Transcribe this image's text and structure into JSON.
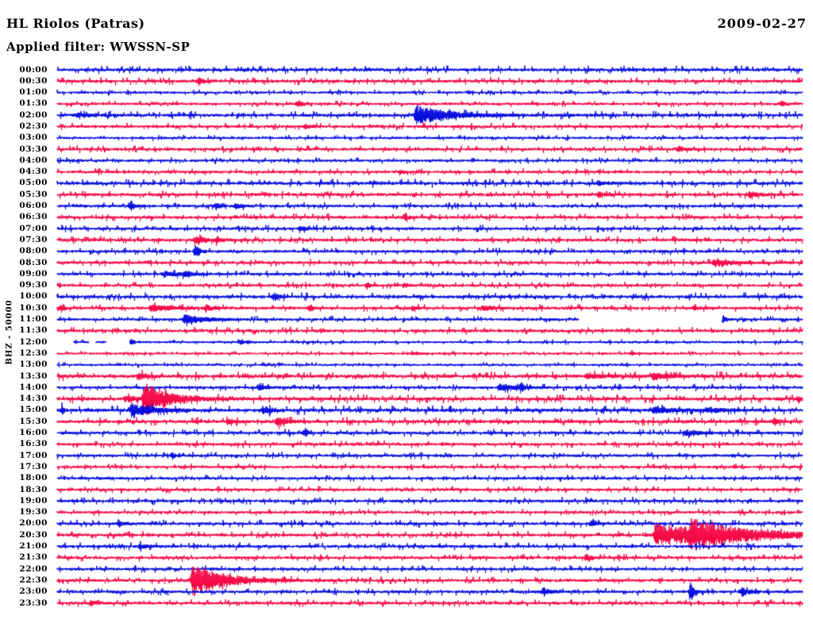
{
  "header": {
    "station_title": "HL Riolos (Patras)",
    "date": "2009-02-27",
    "filter_label": "Applied filter: WWSSN-SP"
  },
  "chart_data": {
    "type": "line",
    "subtype": "seismogram-helicorder",
    "title": "HL Riolos (Patras)",
    "date": "2009-02-27",
    "filter": "WWSSN-SP",
    "channel_scale": "BHZ - 50000",
    "row_span_minutes": 30,
    "grid": false,
    "legend": "none",
    "trace_colors": {
      "blue": "#0008dd",
      "red": "#f50342"
    },
    "rows_note": "48 half-hour traces; events given as fraction of row width (0-1), amplitude in px, exponential decay length as fraction; gaps are missing-data segments",
    "rows": [
      {
        "time": "00:00",
        "color": "blue",
        "noise": 1.7,
        "events": []
      },
      {
        "time": "00:30",
        "color": "red",
        "noise": 1.6,
        "events": [
          {
            "f": 0.19,
            "amp": 5,
            "decay": 0.006
          }
        ]
      },
      {
        "time": "01:00",
        "color": "blue",
        "noise": 1.2,
        "events": []
      },
      {
        "time": "01:30",
        "color": "red",
        "noise": 1.3,
        "events": [
          {
            "f": 0.323,
            "amp": 4,
            "decay": 0.005
          },
          {
            "f": 0.972,
            "amp": 4,
            "decay": 0.004
          }
        ]
      },
      {
        "time": "02:00",
        "color": "blue",
        "noise": 1.7,
        "events": [
          {
            "f": 0.028,
            "amp": 2.5,
            "decay": 0.02
          },
          {
            "f": 0.482,
            "amp": 12,
            "decay": 0.045
          }
        ]
      },
      {
        "time": "02:30",
        "color": "red",
        "noise": 1.5,
        "events": [
          {
            "f": 0.333,
            "amp": 2.5,
            "decay": 0.008
          }
        ]
      },
      {
        "time": "03:00",
        "color": "blue",
        "noise": 1.2,
        "events": []
      },
      {
        "time": "03:30",
        "color": "red",
        "noise": 1.5,
        "events": [
          {
            "f": 0.834,
            "amp": 3,
            "decay": 0.008
          }
        ]
      },
      {
        "time": "04:00",
        "color": "blue",
        "noise": 1.3,
        "events": []
      },
      {
        "time": "04:30",
        "color": "red",
        "noise": 1.4,
        "events": [
          {
            "f": 0.46,
            "amp": 2.5,
            "decay": 0.006
          }
        ]
      },
      {
        "time": "05:00",
        "color": "blue",
        "noise": 1.8,
        "events": [
          {
            "f": 0.727,
            "amp": 2.5,
            "decay": 0.008
          }
        ]
      },
      {
        "time": "05:30",
        "color": "red",
        "noise": 1.7,
        "events": [
          {
            "f": 0.727,
            "amp": 4,
            "decay": 0.006
          },
          {
            "f": 0.929,
            "amp": 4,
            "decay": 0.012
          }
        ]
      },
      {
        "time": "06:00",
        "color": "blue",
        "noise": 1.5,
        "events": [
          {
            "f": 0.099,
            "amp": 6,
            "decay": 0.005
          },
          {
            "f": 0.213,
            "amp": 3,
            "decay": 0.008
          },
          {
            "f": 0.24,
            "amp": 3,
            "decay": 0.008
          }
        ]
      },
      {
        "time": "06:30",
        "color": "red",
        "noise": 1.5,
        "events": [
          {
            "f": 0.466,
            "amp": 4,
            "decay": 0.006
          }
        ]
      },
      {
        "time": "07:00",
        "color": "blue",
        "noise": 1.5,
        "events": [
          {
            "f": 0.326,
            "amp": 3,
            "decay": 0.01
          }
        ]
      },
      {
        "time": "07:30",
        "color": "red",
        "noise": 1.6,
        "events": [
          {
            "f": 0.186,
            "amp": 5,
            "decay": 0.012
          },
          {
            "f": 0.214,
            "amp": 3,
            "decay": 0.005
          }
        ]
      },
      {
        "time": "08:00",
        "color": "blue",
        "noise": 1.5,
        "events": [
          {
            "f": 0.186,
            "amp": 8,
            "decay": 0.005
          }
        ]
      },
      {
        "time": "08:30",
        "color": "red",
        "noise": 1.5,
        "events": [
          {
            "f": 0.881,
            "amp": 4,
            "decay": 0.022
          }
        ]
      },
      {
        "time": "09:00",
        "color": "blue",
        "noise": 1.5,
        "events": [
          {
            "f": 0.143,
            "amp": 3,
            "decay": 0.02
          },
          {
            "f": 0.172,
            "amp": 3,
            "decay": 0.01
          }
        ]
      },
      {
        "time": "09:30",
        "color": "red",
        "noise": 1.4,
        "events": [
          {
            "f": 0.416,
            "amp": 4,
            "decay": 0.004
          },
          {
            "f": 0.466,
            "amp": 3,
            "decay": 0.004
          }
        ]
      },
      {
        "time": "10:00",
        "color": "blue",
        "noise": 1.7,
        "events": [
          {
            "f": 0.291,
            "amp": 5,
            "decay": 0.006
          }
        ]
      },
      {
        "time": "10:30",
        "color": "red",
        "noise": 1.5,
        "events": [
          {
            "f": 0.006,
            "amp": 5,
            "decay": 0.004
          },
          {
            "f": 0.126,
            "amp": 4,
            "decay": 0.028
          },
          {
            "f": 0.2,
            "amp": 4,
            "decay": 0.01
          },
          {
            "f": 0.339,
            "amp": 3.5,
            "decay": 0.005
          },
          {
            "f": 0.477,
            "amp": 3,
            "decay": 0.006
          },
          {
            "f": 0.573,
            "amp": 3,
            "decay": 0.012
          },
          {
            "f": 0.855,
            "amp": 3,
            "decay": 0.008
          }
        ]
      },
      {
        "time": "11:00",
        "color": "blue",
        "noise": 1.4,
        "events": [
          {
            "f": 0.171,
            "amp": 6,
            "decay": 0.025
          },
          {
            "f": 0.893,
            "amp": 5,
            "decay": 0.004
          }
        ],
        "gaps": [
          {
            "start": 0.7,
            "end": 0.892
          }
        ]
      },
      {
        "time": "11:30",
        "color": "red",
        "noise": 1.6,
        "events": []
      },
      {
        "time": "12:00",
        "color": "blue",
        "noise": 1.1,
        "events": [
          {
            "f": 0.1,
            "amp": 3,
            "decay": 0.004
          },
          {
            "f": 0.245,
            "amp": 2.5,
            "decay": 0.01
          }
        ],
        "gaps": [
          {
            "start": 0.0,
            "end": 0.022
          },
          {
            "start": 0.043,
            "end": 0.052
          },
          {
            "start": 0.066,
            "end": 0.097
          }
        ]
      },
      {
        "time": "12:30",
        "color": "red",
        "noise": 1.0,
        "events": [
          {
            "f": 0.478,
            "amp": 2.5,
            "decay": 0.008
          },
          {
            "f": 0.77,
            "amp": 2,
            "decay": 0.006
          }
        ]
      },
      {
        "time": "13:00",
        "color": "blue",
        "noise": 1.1,
        "events": []
      },
      {
        "time": "13:30",
        "color": "red",
        "noise": 1.9,
        "events": [
          {
            "f": 0.11,
            "amp": 4,
            "decay": 0.008
          },
          {
            "f": 0.71,
            "amp": 3,
            "decay": 0.03
          },
          {
            "f": 0.8,
            "amp": 4.5,
            "decay": 0.018
          }
        ]
      },
      {
        "time": "14:00",
        "color": "blue",
        "noise": 1.5,
        "events": [
          {
            "f": 0.272,
            "amp": 3,
            "decay": 0.008
          },
          {
            "f": 0.594,
            "amp": 4,
            "decay": 0.02
          },
          {
            "f": 0.623,
            "amp": 6,
            "decay": 0.003
          }
        ]
      },
      {
        "time": "14:30",
        "color": "red",
        "noise": 1.9,
        "events": [
          {
            "f": 0.092,
            "amp": 4,
            "decay": 0.015
          },
          {
            "f": 0.117,
            "amp": 22,
            "decay": 0.03
          },
          {
            "f": 0.995,
            "amp": 5,
            "decay": 0.003
          }
        ]
      },
      {
        "time": "15:00",
        "color": "blue",
        "noise": 1.9,
        "events": [
          {
            "f": 0.007,
            "amp": 6,
            "decay": 0.002
          },
          {
            "f": 0.1,
            "amp": 9,
            "decay": 0.025
          },
          {
            "f": 0.277,
            "amp": 5,
            "decay": 0.01
          },
          {
            "f": 0.8,
            "amp": 3.5,
            "decay": 0.03
          },
          {
            "f": 0.872,
            "amp": 3,
            "decay": 0.02
          }
        ]
      },
      {
        "time": "15:30",
        "color": "red",
        "noise": 1.8,
        "events": [
          {
            "f": 0.23,
            "amp": 3,
            "decay": 0.008
          },
          {
            "f": 0.295,
            "amp": 6,
            "decay": 0.01
          },
          {
            "f": 0.962,
            "amp": 5,
            "decay": 0.004
          }
        ]
      },
      {
        "time": "16:00",
        "color": "blue",
        "noise": 1.6,
        "events": [
          {
            "f": 0.333,
            "amp": 7,
            "decay": 0.003
          },
          {
            "f": 0.843,
            "amp": 3.5,
            "decay": 0.022
          }
        ]
      },
      {
        "time": "16:30",
        "color": "red",
        "noise": 1.5,
        "events": []
      },
      {
        "time": "17:00",
        "color": "blue",
        "noise": 1.5,
        "events": [
          {
            "f": 0.155,
            "amp": 4,
            "decay": 0.004
          }
        ]
      },
      {
        "time": "17:30",
        "color": "red",
        "noise": 1.4,
        "events": []
      },
      {
        "time": "18:00",
        "color": "blue",
        "noise": 1.4,
        "events": []
      },
      {
        "time": "18:30",
        "color": "red",
        "noise": 1.4,
        "events": []
      },
      {
        "time": "19:00",
        "color": "blue",
        "noise": 1.6,
        "events": []
      },
      {
        "time": "19:30",
        "color": "red",
        "noise": 1.4,
        "events": []
      },
      {
        "time": "20:00",
        "color": "blue",
        "noise": 1.6,
        "events": [
          {
            "f": 0.083,
            "amp": 4,
            "decay": 0.005
          },
          {
            "f": 0.716,
            "amp": 3,
            "decay": 0.008
          }
        ]
      },
      {
        "time": "20:30",
        "color": "red",
        "noise": 1.6,
        "events": [
          {
            "f": 0.803,
            "amp": 14,
            "decay": 0.1
          },
          {
            "f": 0.85,
            "amp": 12,
            "decay": 0.06
          }
        ]
      },
      {
        "time": "21:00",
        "color": "blue",
        "noise": 1.6,
        "events": [
          {
            "f": 0.112,
            "amp": 3.5,
            "decay": 0.008
          }
        ]
      },
      {
        "time": "21:30",
        "color": "red",
        "noise": 1.5,
        "events": [
          {
            "f": 0.711,
            "amp": 6,
            "decay": 0.005
          }
        ]
      },
      {
        "time": "22:00",
        "color": "blue",
        "noise": 1.5,
        "events": []
      },
      {
        "time": "22:30",
        "color": "red",
        "noise": 1.5,
        "events": [
          {
            "f": 0.182,
            "amp": 22,
            "decay": 0.04
          }
        ]
      },
      {
        "time": "23:00",
        "color": "blue",
        "noise": 1.5,
        "events": [
          {
            "f": 0.652,
            "amp": 4,
            "decay": 0.01
          },
          {
            "f": 0.85,
            "amp": 12,
            "decay": 0.005
          },
          {
            "f": 0.919,
            "amp": 6,
            "decay": 0.01
          }
        ]
      },
      {
        "time": "23:30",
        "color": "red",
        "noise": 1.5,
        "events": [
          {
            "f": 0.046,
            "amp": 3.5,
            "decay": 0.008
          }
        ]
      }
    ]
  }
}
